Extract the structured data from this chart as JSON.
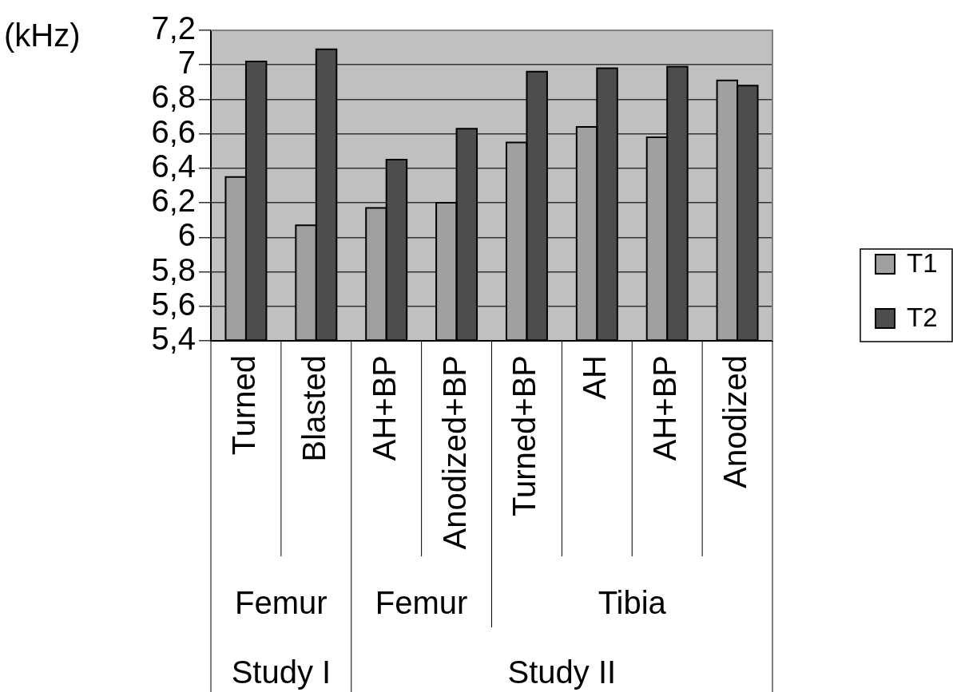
{
  "chart_data": {
    "type": "bar",
    "ylabel": "(kHz)",
    "categories": [
      "Turned",
      "Blasted",
      "AH+BP",
      "Anodized+BP",
      "Turned+BP",
      "AH",
      "AH+BP",
      "Anodized"
    ],
    "series": [
      {
        "name": "T1",
        "color": "#a0a0a0",
        "values": [
          6.35,
          6.07,
          6.17,
          6.2,
          6.55,
          6.64,
          6.58,
          6.91
        ]
      },
      {
        "name": "T2",
        "color": "#4d4d4d",
        "values": [
          7.02,
          7.09,
          6.45,
          6.63,
          6.96,
          6.98,
          6.99,
          6.88
        ]
      }
    ],
    "ylim": [
      5.4,
      7.2
    ],
    "yticks": [
      {
        "value": 5.4,
        "label": "5,4"
      },
      {
        "value": 5.6,
        "label": "5,6"
      },
      {
        "value": 5.8,
        "label": "5,8"
      },
      6,
      {
        "value": 6.2,
        "label": "6,2"
      },
      {
        "value": 6.4,
        "label": "6,4"
      },
      {
        "value": 6.6,
        "label": "6,6"
      },
      {
        "value": 6.8,
        "label": "6,8"
      },
      7,
      {
        "value": 7.2,
        "label": "7,2"
      }
    ],
    "grid": "y",
    "legend": "right",
    "annotations": [
      "Femur",
      "Femur",
      "Tibia",
      "Study I",
      "Study II"
    ]
  }
}
